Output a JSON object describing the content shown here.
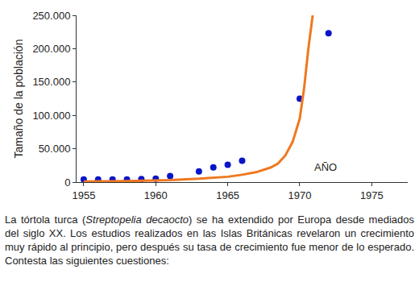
{
  "chart_data": {
    "type": "scatter",
    "y_label": "Tamaño de la población",
    "series": [
      {
        "type": "scatter",
        "color": "#0a14c8",
        "marker": "circle",
        "x": [
          1955,
          1956,
          1957,
          1958,
          1959,
          1960,
          1961,
          1963,
          1964,
          1965,
          1966,
          1970,
          1972
        ],
        "values": [
          4000,
          4000,
          4000,
          4000,
          4500,
          5000,
          9000,
          16000,
          22000,
          26000,
          32000,
          125000,
          223000
        ]
      },
      {
        "type": "line",
        "color": "#f07820",
        "line_style": "solid",
        "x": [
          1955,
          1958,
          1961,
          1963,
          1965,
          1966,
          1967,
          1968,
          1968.5,
          1969,
          1969.5,
          1970,
          1970.3,
          1970.6,
          1970.9
        ],
        "values": [
          1000,
          1500,
          3000,
          5000,
          8000,
          11000,
          15000,
          22000,
          28000,
          40000,
          60000,
          95000,
          140000,
          200000,
          250000
        ]
      }
    ],
    "xlim": [
      1954.5,
      1977.5
    ],
    "xticks": [
      1955,
      1960,
      1965,
      1970,
      1975
    ],
    "ylim": [
      0,
      250000
    ],
    "yticks": [
      0,
      {
        "value": 50000,
        "label": "50.000"
      },
      {
        "value": 100000,
        "label": "100.000"
      },
      {
        "value": 150000,
        "label": "150.000"
      },
      {
        "value": 200000,
        "label": "200.000"
      },
      {
        "value": 250000,
        "label": "250.000"
      }
    ],
    "grid": false,
    "annotations": [
      {
        "text": "AÑO",
        "x": 1971.8,
        "y": 22000
      }
    ],
    "caption": {
      "before": "La tórtola turca (",
      "italic": "Streptopelia decaocto",
      "after": ") se ha extendido por Europa desde mediados del siglo XX. Los estudios realizados en las Islas Británicas revelaron un crecimiento muy rápido al principio, pero después su tasa de crecimiento fue menor de lo esperado. Contesta las siguientes cuestiones:"
    }
  }
}
